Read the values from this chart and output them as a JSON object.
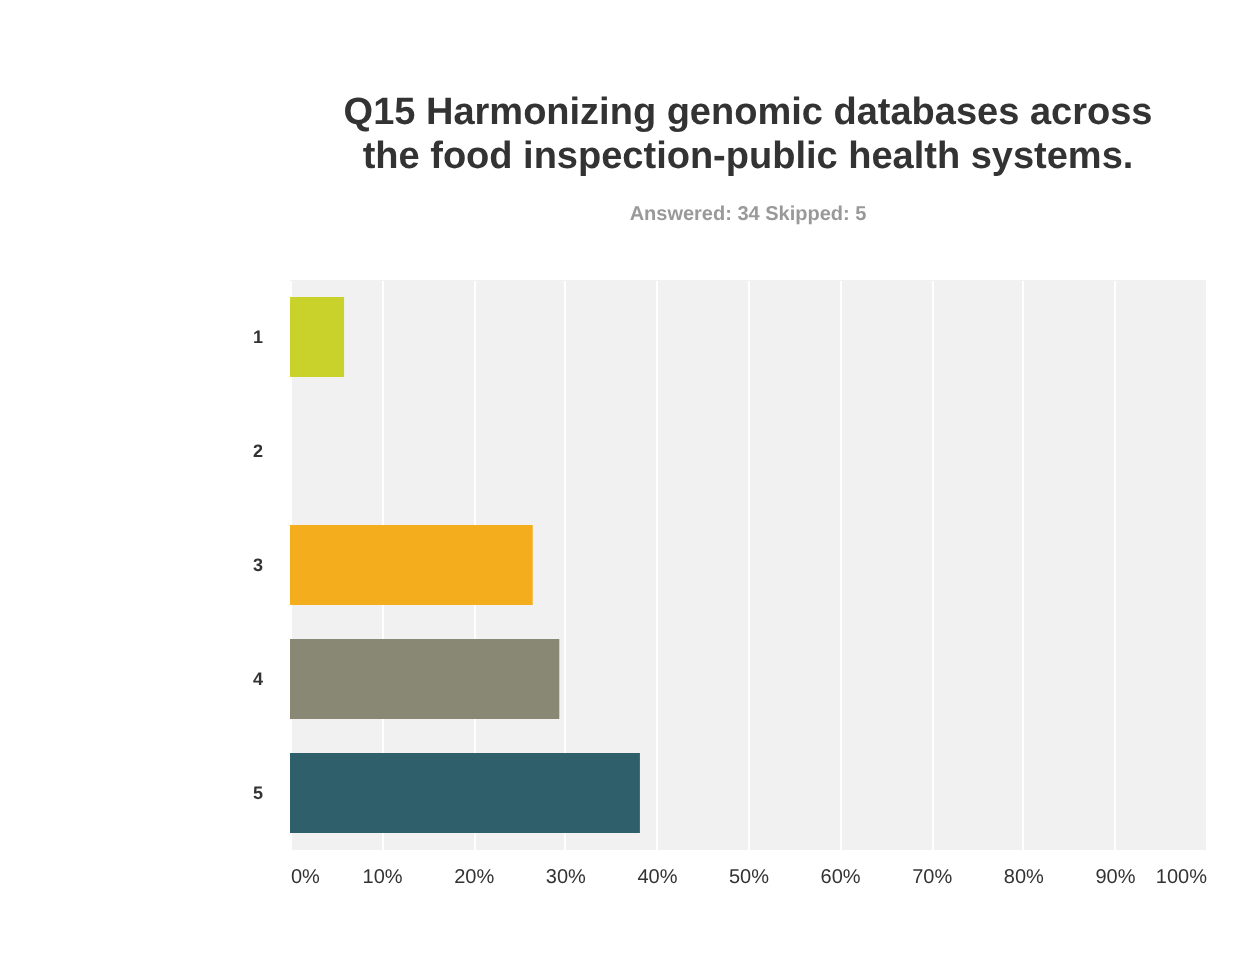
{
  "chart_data": {
    "type": "bar",
    "orientation": "horizontal",
    "title": "Q15 Harmonizing genomic databases across the food inspection-public health systems.",
    "subtitle": "Answered: 34    Skipped: 5",
    "categories": [
      "1",
      "2",
      "3",
      "4",
      "5"
    ],
    "values": [
      5.9,
      0,
      26.5,
      29.4,
      38.2
    ],
    "colors": [
      "#c8d22a",
      "#9e9e9e",
      "#f4ae1d",
      "#888874",
      "#2f5f6b"
    ],
    "xlim": [
      0,
      100
    ],
    "xticks": [
      {
        "value": 0,
        "label": "0%"
      },
      {
        "value": 10,
        "label": "10%"
      },
      {
        "value": 20,
        "label": "20%"
      },
      {
        "value": 30,
        "label": "30%"
      },
      {
        "value": 40,
        "label": "40%"
      },
      {
        "value": 50,
        "label": "50%"
      },
      {
        "value": 60,
        "label": "60%"
      },
      {
        "value": 70,
        "label": "70%"
      },
      {
        "value": 80,
        "label": "80%"
      },
      {
        "value": 90,
        "label": "90%"
      },
      {
        "value": 100,
        "label": "100%"
      }
    ],
    "grid": "x",
    "legend": false
  }
}
